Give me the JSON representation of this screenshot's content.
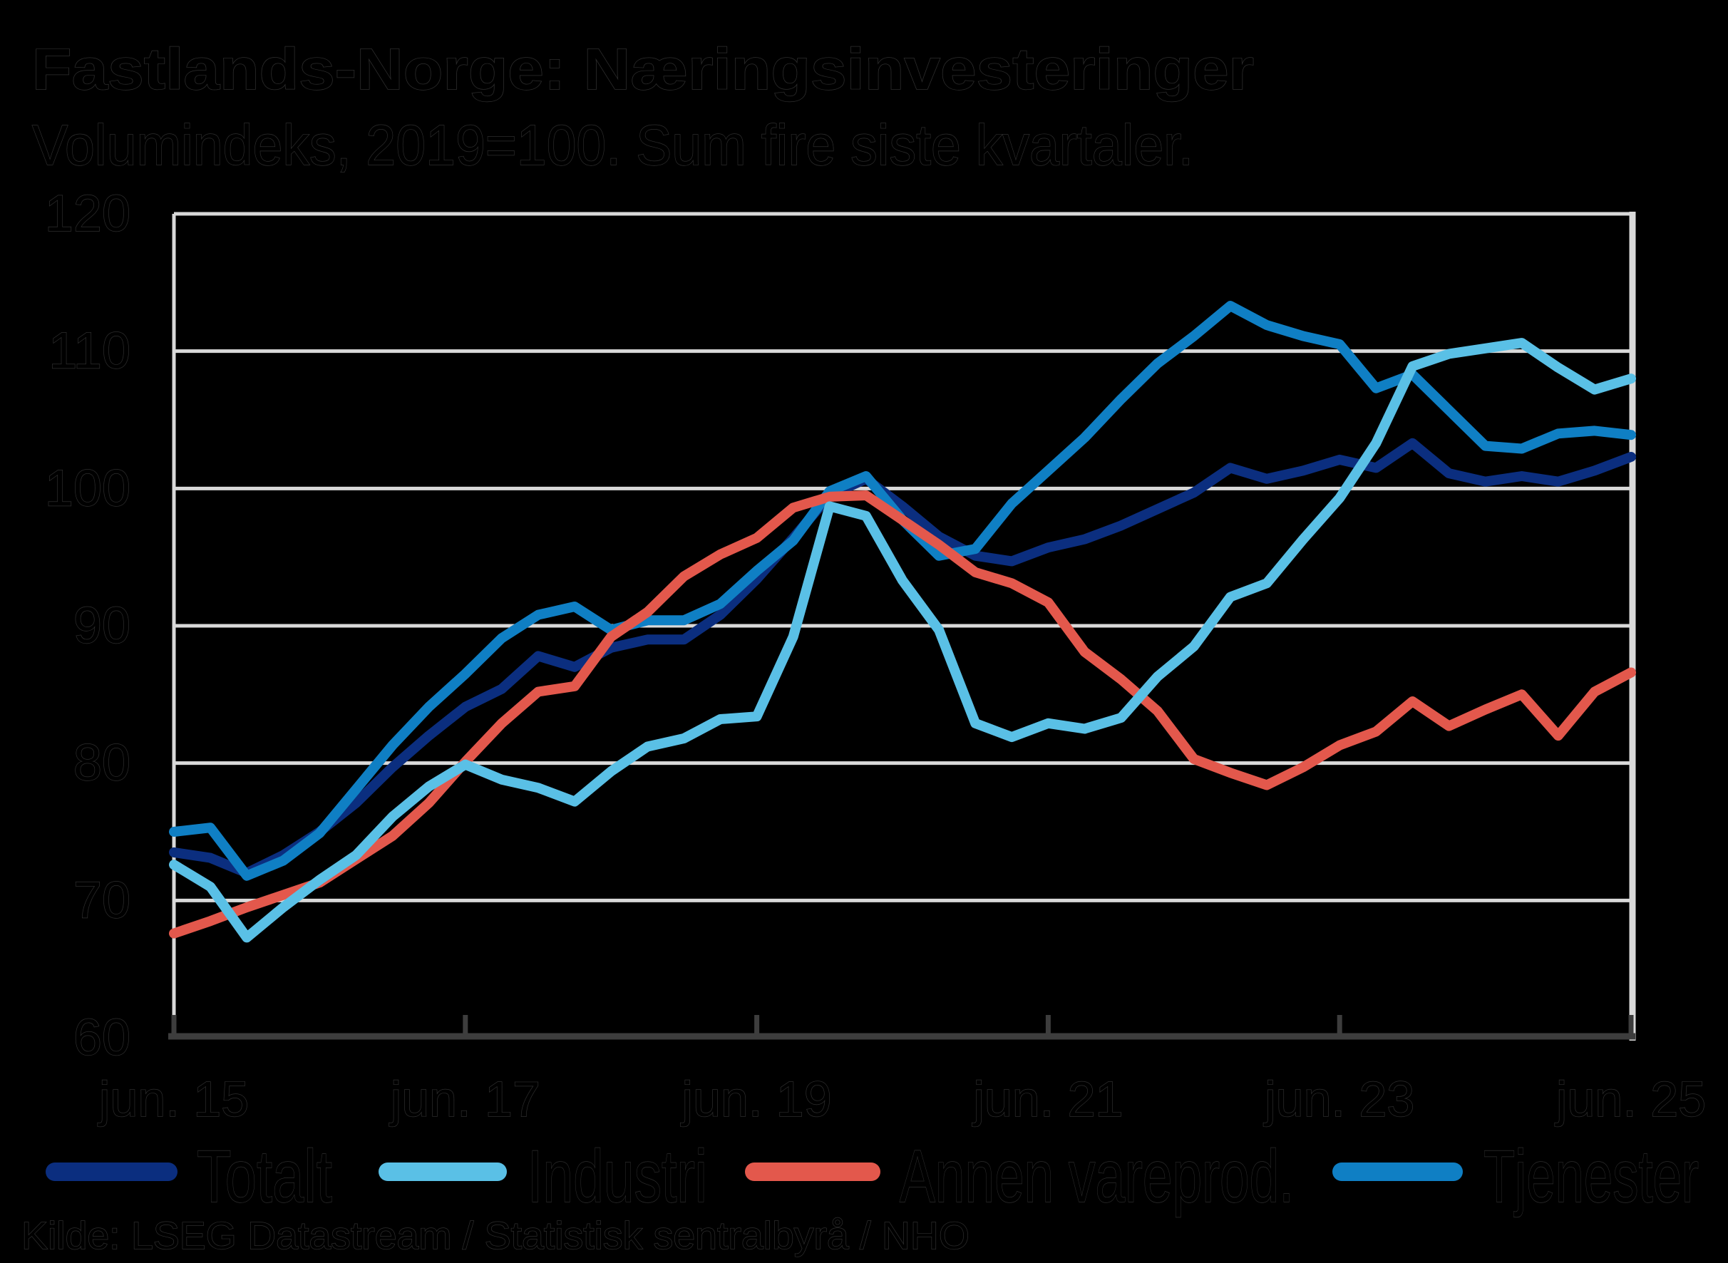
{
  "header": {
    "title_line1": "Fastlands-Norge: Næringsinvesteringer",
    "title_line2": "Volumindeks, 2019=100. Sum fire siste kvartaler."
  },
  "footer": {
    "source": "Kilde: LSEG Datastream / Statistisk sentralbyrå / NHO"
  },
  "colors": {
    "totalt": "#0b2e7f",
    "industri": "#5ac0e6",
    "annen_vareprod": "#e3584c",
    "tjenester": "#0f7fc4",
    "gridline": "#d9d9d9",
    "axis": "#3d3d3d",
    "text": "#000000",
    "background": "#000000"
  },
  "legend": {
    "items": [
      {
        "label": "Totalt",
        "color": "#0b2e7f"
      },
      {
        "label": "Industri",
        "color": "#5ac0e6"
      },
      {
        "label": "Annen vareprod.",
        "color": "#e3584c"
      },
      {
        "label": "Tjenester",
        "color": "#0f7fc4"
      }
    ]
  },
  "chart_data": {
    "type": "line",
    "title": "Fastlands-Norge: Næringsinvesteringer",
    "subtitle": "Volumindeks, 2019=100. Sum fire siste kvartaler.",
    "xlabel": "",
    "ylabel": "",
    "ylim": [
      60,
      120
    ],
    "y_ticks": [
      120,
      110,
      100,
      90,
      80,
      70,
      60
    ],
    "x_tick_labels": [
      "jun. 15",
      "jun. 17",
      "jun. 19",
      "jun. 21",
      "jun. 23",
      "jun. 25"
    ],
    "grid": "horizontal",
    "legend_position": "bottom",
    "x": [
      "jun. 15",
      "sep. 15",
      "des. 15",
      "mar. 16",
      "jun. 16",
      "sep. 16",
      "des. 16",
      "mar. 17",
      "jun. 17",
      "sep. 17",
      "des. 17",
      "mar. 18",
      "jun. 18",
      "sep. 18",
      "des. 18",
      "mar. 19",
      "jun. 19",
      "sep. 19",
      "des. 19",
      "mar. 20",
      "jun. 20",
      "sep. 20",
      "des. 20",
      "mar. 21",
      "jun. 21",
      "sep. 21",
      "des. 21",
      "mar. 22",
      "jun. 22",
      "sep. 22",
      "des. 22",
      "mar. 23",
      "jun. 23",
      "sep. 23",
      "des. 23",
      "mar. 24",
      "jun. 24",
      "sep. 24",
      "des. 24",
      "mar. 25",
      "jun. 25"
    ],
    "series": [
      {
        "name": "Totalt",
        "color": "#0b2e7f",
        "values": [
          73.5,
          73.1,
          72.0,
          73.3,
          75.0,
          77.1,
          79.7,
          82.0,
          84.1,
          85.4,
          87.8,
          87.0,
          88.4,
          89.0,
          89.0,
          90.8,
          93.4,
          96.4,
          99.5,
          100.7,
          98.7,
          96.5,
          95.1,
          94.7,
          95.7,
          96.3,
          97.3,
          98.5,
          99.7,
          101.5,
          100.7,
          101.3,
          102.1,
          101.5,
          103.3,
          101.1,
          100.5,
          100.9,
          100.5,
          101.3,
          102.3
        ]
      },
      {
        "name": "Industri",
        "color": "#5ac0e6",
        "values": [
          72.6,
          71.0,
          67.3,
          69.5,
          71.5,
          73.3,
          76.1,
          78.3,
          79.9,
          78.8,
          78.2,
          77.2,
          79.4,
          81.2,
          81.8,
          83.2,
          83.4,
          89.2,
          98.7,
          98.0,
          93.3,
          89.7,
          82.9,
          81.9,
          82.9,
          82.5,
          83.3,
          86.3,
          88.5,
          92.1,
          93.1,
          96.3,
          99.3,
          103.3,
          108.9,
          109.8,
          110.2,
          110.6,
          108.8,
          107.2,
          108.0
        ]
      },
      {
        "name": "Annen vareprod.",
        "color": "#e3584c",
        "values": [
          67.6,
          68.5,
          69.5,
          70.4,
          71.3,
          73.0,
          74.7,
          77.1,
          80.1,
          82.9,
          85.2,
          85.6,
          89.2,
          91.0,
          93.6,
          95.2,
          96.4,
          98.6,
          99.4,
          99.5,
          97.7,
          95.9,
          93.9,
          93.1,
          91.7,
          88.1,
          86.1,
          83.8,
          80.3,
          79.3,
          78.4,
          79.7,
          81.3,
          82.3,
          84.5,
          82.7,
          83.9,
          85.0,
          82.0,
          85.2,
          86.6
        ]
      },
      {
        "name": "Tjenester",
        "color": "#0f7fc4",
        "values": [
          75.0,
          75.3,
          71.8,
          72.9,
          74.9,
          78.1,
          81.3,
          84.1,
          86.5,
          89.1,
          90.8,
          91.4,
          89.7,
          90.4,
          90.4,
          91.6,
          94.0,
          96.2,
          99.8,
          100.9,
          97.7,
          95.1,
          95.6,
          98.9,
          101.3,
          103.7,
          106.5,
          109.1,
          111.1,
          113.3,
          111.9,
          111.1,
          110.5,
          107.3,
          108.3,
          105.7,
          103.1,
          102.9,
          104.0,
          104.2,
          103.9
        ]
      }
    ]
  }
}
